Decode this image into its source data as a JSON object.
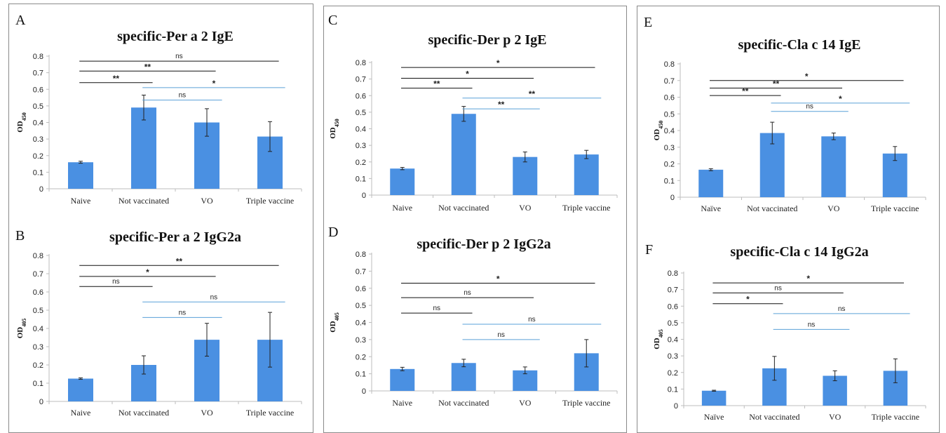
{
  "figure": {
    "bar_color": "#4a90e2",
    "axis_color": "#bdbdbd",
    "black_line_color": "#111111",
    "blue_line_color": "#5aa0d8",
    "box_border_color": "#8a8a8a"
  },
  "chart_data": [
    {
      "panel": "A",
      "type": "bar",
      "title": "specific-Per a 2 IgE",
      "ylabel": "OD450",
      "ylabel_main": "OD",
      "ylabel_sub": "450",
      "ylim": [
        0,
        0.8
      ],
      "yticks": [
        0,
        0.1,
        0.2,
        0.3,
        0.4,
        0.5,
        0.6,
        0.7,
        0.8
      ],
      "ytick_labels": [
        "0",
        "0.1",
        "0.2",
        "0.3",
        "0.4",
        "0.5",
        "0.6",
        "0.7",
        "0.8"
      ],
      "categories": [
        "Naive",
        "Not vaccinated",
        "VO",
        "Triple vaccine"
      ],
      "values": [
        0.16,
        0.49,
        0.4,
        0.315
      ],
      "errors": [
        0.006,
        0.075,
        0.083,
        0.09
      ],
      "significance": [
        {
          "from": 0,
          "to": 3,
          "y": 0.77,
          "label": "ns",
          "color": "black"
        },
        {
          "from": 0,
          "to": 2,
          "y": 0.71,
          "label": "**",
          "color": "black"
        },
        {
          "from": 0,
          "to": 1,
          "y": 0.64,
          "label": "**",
          "color": "black"
        },
        {
          "from": 1,
          "to": 3,
          "y": 0.61,
          "label": "*",
          "color": "blue"
        },
        {
          "from": 1,
          "to": 2,
          "y": 0.535,
          "label": "ns",
          "color": "blue"
        }
      ]
    },
    {
      "panel": "B",
      "type": "bar",
      "title": "specific-Per a 2 IgG2a",
      "ylabel": "OD405",
      "ylabel_main": "OD",
      "ylabel_sub": "405",
      "ylim": [
        0,
        0.8
      ],
      "yticks": [
        0,
        0.1,
        0.2,
        0.3,
        0.4,
        0.5,
        0.6,
        0.7,
        0.8
      ],
      "ytick_labels": [
        "0",
        "0.1",
        "0.2",
        "0.3",
        "0.4",
        "0.5",
        "0.6",
        "0.7",
        "0.8"
      ],
      "categories": [
        "Naive",
        "Not vaccinated",
        "VO",
        "Triple vaccine"
      ],
      "values": [
        0.125,
        0.2,
        0.338,
        0.338
      ],
      "errors": [
        0.004,
        0.05,
        0.09,
        0.15
      ],
      "significance": [
        {
          "from": 0,
          "to": 3,
          "y": 0.745,
          "label": "**",
          "color": "black"
        },
        {
          "from": 0,
          "to": 2,
          "y": 0.685,
          "label": "*",
          "color": "black"
        },
        {
          "from": 0,
          "to": 1,
          "y": 0.63,
          "label": "ns",
          "color": "black"
        },
        {
          "from": 1,
          "to": 3,
          "y": 0.545,
          "label": "ns",
          "color": "blue"
        },
        {
          "from": 1,
          "to": 2,
          "y": 0.46,
          "label": "ns",
          "color": "blue"
        }
      ]
    },
    {
      "panel": "C",
      "type": "bar",
      "title": "specific-Der p 2 IgE",
      "ylabel": "OD450",
      "ylabel_main": "OD",
      "ylabel_sub": "450",
      "ylim": [
        0,
        0.8
      ],
      "yticks": [
        0,
        0.1,
        0.2,
        0.3,
        0.4,
        0.5,
        0.6,
        0.7,
        0.8
      ],
      "ytick_labels": [
        "0",
        "0.1",
        "0.2",
        "0.3",
        "0.4",
        "0.5",
        "0.6",
        "0.7",
        "0.8"
      ],
      "categories": [
        "Naive",
        "Not vaccinated",
        "VO",
        "Triple vaccine"
      ],
      "values": [
        0.16,
        0.49,
        0.23,
        0.245
      ],
      "errors": [
        0.007,
        0.045,
        0.03,
        0.025
      ],
      "significance": [
        {
          "from": 0,
          "to": 3,
          "y": 0.77,
          "label": "*",
          "color": "black"
        },
        {
          "from": 0,
          "to": 2,
          "y": 0.705,
          "label": "*",
          "color": "black"
        },
        {
          "from": 0,
          "to": 1,
          "y": 0.645,
          "label": "**",
          "color": "black"
        },
        {
          "from": 1,
          "to": 3,
          "y": 0.585,
          "label": "**",
          "color": "blue"
        },
        {
          "from": 1,
          "to": 2,
          "y": 0.52,
          "label": "**",
          "color": "blue"
        }
      ]
    },
    {
      "panel": "D",
      "type": "bar",
      "title": "specific-Der p 2 IgG2a",
      "ylabel": "OD405",
      "ylabel_main": "OD",
      "ylabel_sub": "405",
      "ylim": [
        0,
        0.8
      ],
      "yticks": [
        0,
        0.1,
        0.2,
        0.3,
        0.4,
        0.5,
        0.6,
        0.7,
        0.8
      ],
      "ytick_labels": [
        "0",
        "0.1",
        "0.2",
        "0.3",
        "0.4",
        "0.5",
        "0.6",
        "0.7",
        "0.8"
      ],
      "categories": [
        "Naive",
        "Not vaccinated",
        "VO",
        "Triple vaccine"
      ],
      "values": [
        0.128,
        0.163,
        0.12,
        0.22
      ],
      "errors": [
        0.01,
        0.022,
        0.02,
        0.08
      ],
      "significance": [
        {
          "from": 0,
          "to": 3,
          "y": 0.63,
          "label": "*",
          "color": "black"
        },
        {
          "from": 0,
          "to": 2,
          "y": 0.545,
          "label": "ns",
          "color": "black"
        },
        {
          "from": 0,
          "to": 1,
          "y": 0.455,
          "label": "ns",
          "color": "black"
        },
        {
          "from": 1,
          "to": 3,
          "y": 0.39,
          "label": "ns",
          "color": "blue"
        },
        {
          "from": 1,
          "to": 2,
          "y": 0.3,
          "label": "ns",
          "color": "blue"
        }
      ]
    },
    {
      "panel": "E",
      "type": "bar",
      "title": "specific-Cla c 14 IgE",
      "ylabel": "OD450",
      "ylabel_main": "OD",
      "ylabel_sub": "450",
      "ylim": [
        0,
        0.8
      ],
      "yticks": [
        0,
        0.1,
        0.2,
        0.3,
        0.4,
        0.5,
        0.6,
        0.7,
        0.8
      ],
      "ytick_labels": [
        "0",
        "0.1",
        "0.2",
        "0.3",
        "0.4",
        "0.5",
        "0.6",
        "0.7",
        "0.8"
      ],
      "categories": [
        "Naïve",
        "Not vaccinated",
        "VO",
        "Triple vaccine"
      ],
      "values": [
        0.165,
        0.385,
        0.365,
        0.262
      ],
      "errors": [
        0.006,
        0.065,
        0.02,
        0.042
      ],
      "significance": [
        {
          "from": 0,
          "to": 3,
          "y": 0.7,
          "label": "*",
          "color": "black"
        },
        {
          "from": 0,
          "to": 2,
          "y": 0.655,
          "label": "**",
          "color": "black"
        },
        {
          "from": 0,
          "to": 1,
          "y": 0.61,
          "label": "**",
          "color": "black"
        },
        {
          "from": 1,
          "to": 3,
          "y": 0.565,
          "label": "*",
          "color": "blue"
        },
        {
          "from": 1,
          "to": 2,
          "y": 0.515,
          "label": "ns",
          "color": "blue"
        }
      ]
    },
    {
      "panel": "F",
      "type": "bar",
      "title": "specific-Cla c 14 IgG2a",
      "ylabel": "OD405",
      "ylabel_main": "OD",
      "ylabel_sub": "405",
      "ylim": [
        0,
        0.8
      ],
      "yticks": [
        0,
        0.1,
        0.2,
        0.3,
        0.4,
        0.5,
        0.6,
        0.7,
        0.8
      ],
      "ytick_labels": [
        "0",
        "0.1",
        "0.2",
        "0.3",
        "0.4",
        "0.5",
        "0.6",
        "0.7",
        "0.8"
      ],
      "categories": [
        "Naïve",
        "Not vaccinated",
        "VO",
        "Triple vaccine"
      ],
      "values": [
        0.09,
        0.225,
        0.18,
        0.21
      ],
      "errors": [
        0.003,
        0.072,
        0.03,
        0.072
      ],
      "significance": [
        {
          "from": 0,
          "to": 3,
          "y": 0.74,
          "label": "*",
          "color": "black"
        },
        {
          "from": 0,
          "to": 2,
          "y": 0.68,
          "label": "ns",
          "color": "black"
        },
        {
          "from": 0,
          "to": 1,
          "y": 0.615,
          "label": "*",
          "color": "black"
        },
        {
          "from": 1,
          "to": 3,
          "y": 0.555,
          "label": "ns",
          "color": "blue"
        },
        {
          "from": 1,
          "to": 2,
          "y": 0.46,
          "label": "ns",
          "color": "blue"
        }
      ]
    }
  ]
}
